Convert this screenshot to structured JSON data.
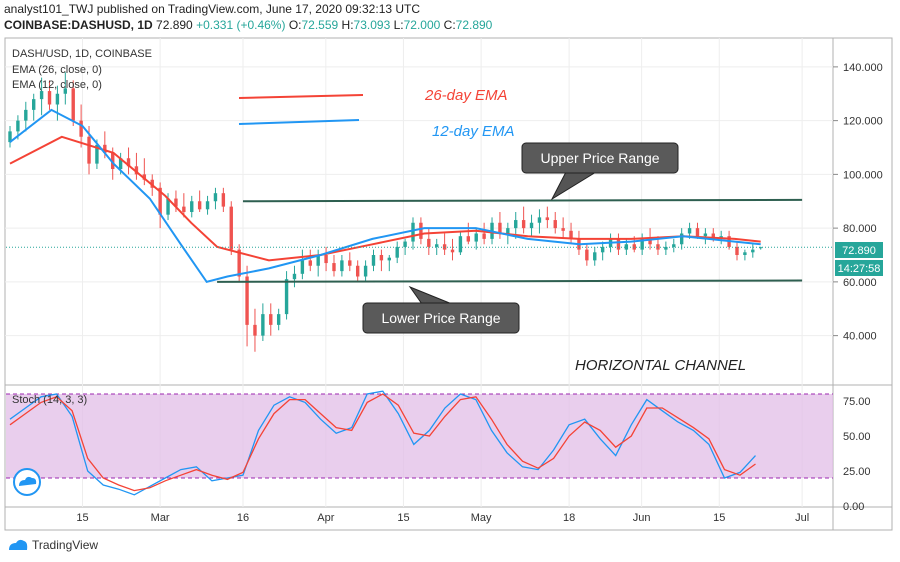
{
  "header": {
    "line1": "analyst101_TWJ published on TradingView.com, June 17, 2020 09:32:13 UTC",
    "line2_symbol": "COINBASE:DASHUSD, 1D",
    "line2_price": "72.890",
    "line2_change": "+0.331 (+0.46%)",
    "ohlc": {
      "o_label": "O:",
      "o": "72.559",
      "h_label": "H:",
      "h": "73.093",
      "l_label": "L:",
      "l": "72.000",
      "c_label": "C:",
      "c": "72.890"
    }
  },
  "legend": {
    "symbol": "DASH/USD, 1D, COINBASE",
    "ema1": "EMA (26, close, 0)",
    "ema2": "EMA (12, close, 0)"
  },
  "annotations": {
    "ema26": "26-day EMA",
    "ema12": "12-day EMA",
    "upper": "Upper Price Range",
    "lower": "Lower Price Range",
    "channel": "HORIZONTAL CHANNEL"
  },
  "price_label": "72.890",
  "countdown_label": "14:27:58",
  "stoch_label": "Stoch (14, 3, 3)",
  "footer": {
    "brand": "TradingView"
  },
  "colors": {
    "up": "#26a69a",
    "down": "#ef5350",
    "ema26": "#f44336",
    "ema12": "#2196f3",
    "channel": "#2e5f50",
    "stoch_k": "#2196f3",
    "stoch_d": "#f44336",
    "stoch_band": "#e1bee7"
  },
  "chart_data": [
    {
      "type": "candlestick",
      "title": "DASH/USD, 1D, COINBASE",
      "ylim": [
        22,
        150
      ],
      "y_ticks": [
        "140.000",
        "120.000",
        "100.000",
        "80.000",
        "60.000",
        "40.000"
      ],
      "y_tick_values": [
        140,
        120,
        100,
        80,
        60,
        40
      ],
      "x_ticks": [
        "15",
        "Mar",
        "16",
        "Apr",
        "15",
        "May",
        "18",
        "Jun",
        "15",
        "Jul"
      ],
      "x_tick_days": [
        14,
        29,
        45,
        61,
        76,
        91,
        108,
        122,
        137,
        153
      ],
      "grid": true,
      "candles": [
        [
          112,
          118,
          110,
          116
        ],
        [
          116,
          122,
          113,
          120
        ],
        [
          120,
          127,
          116,
          124
        ],
        [
          124,
          130,
          120,
          128
        ],
        [
          128,
          136,
          122,
          131
        ],
        [
          131,
          135,
          124,
          126
        ],
        [
          126,
          133,
          120,
          130
        ],
        [
          130,
          138,
          126,
          132
        ],
        [
          132,
          135,
          118,
          120
        ],
        [
          120,
          126,
          110,
          114
        ],
        [
          114,
          118,
          100,
          104
        ],
        [
          104,
          113,
          102,
          111
        ],
        [
          111,
          116,
          106,
          108
        ],
        [
          108,
          110,
          98,
          102
        ],
        [
          102,
          108,
          100,
          106
        ],
        [
          106,
          110,
          100,
          103
        ],
        [
          103,
          108,
          98,
          100
        ],
        [
          100,
          106,
          96,
          98
        ],
        [
          98,
          100,
          92,
          95
        ],
        [
          95,
          97,
          80,
          85
        ],
        [
          85,
          93,
          83,
          91
        ],
        [
          91,
          94,
          86,
          88
        ],
        [
          88,
          93,
          84,
          86
        ],
        [
          86,
          92,
          84,
          90
        ],
        [
          90,
          94,
          86,
          87
        ],
        [
          87,
          92,
          85,
          90
        ],
        [
          90,
          95,
          87,
          93
        ],
        [
          93,
          95,
          86,
          88
        ],
        [
          88,
          90,
          70,
          72
        ],
        [
          72,
          74,
          60,
          62
        ],
        [
          62,
          66,
          36,
          44
        ],
        [
          44,
          50,
          34,
          40
        ],
        [
          40,
          52,
          38,
          48
        ],
        [
          48,
          52,
          40,
          44
        ],
        [
          44,
          50,
          42,
          48
        ],
        [
          48,
          64,
          46,
          61
        ],
        [
          61,
          66,
          58,
          63
        ],
        [
          63,
          72,
          61,
          68
        ],
        [
          68,
          72,
          64,
          66
        ],
        [
          66,
          72,
          62,
          70
        ],
        [
          70,
          73,
          64,
          67
        ],
        [
          67,
          70,
          62,
          64
        ],
        [
          64,
          70,
          62,
          68
        ],
        [
          68,
          71,
          64,
          66
        ],
        [
          66,
          68,
          60,
          62
        ],
        [
          62,
          68,
          60,
          66
        ],
        [
          66,
          72,
          64,
          70
        ],
        [
          70,
          72,
          64,
          68
        ],
        [
          68,
          70,
          64,
          69
        ],
        [
          69,
          75,
          67,
          73
        ],
        [
          73,
          76,
          70,
          75
        ],
        [
          75,
          84,
          72,
          82
        ],
        [
          82,
          84,
          74,
          76
        ],
        [
          76,
          80,
          70,
          73
        ],
        [
          73,
          76,
          70,
          74
        ],
        [
          74,
          78,
          70,
          72
        ],
        [
          72,
          76,
          68,
          71
        ],
        [
          71,
          79,
          70,
          77
        ],
        [
          77,
          82,
          74,
          75
        ],
        [
          75,
          80,
          72,
          78
        ],
        [
          78,
          82,
          74,
          76
        ],
        [
          76,
          84,
          74,
          82
        ],
        [
          82,
          86,
          76,
          78
        ],
        [
          78,
          82,
          74,
          80
        ],
        [
          80,
          86,
          76,
          83
        ],
        [
          83,
          88,
          78,
          80
        ],
        [
          80,
          85,
          77,
          82
        ],
        [
          82,
          87,
          78,
          84
        ],
        [
          84,
          88,
          80,
          83
        ],
        [
          83,
          86,
          78,
          80
        ],
        [
          80,
          84,
          76,
          79
        ],
        [
          79,
          82,
          74,
          76
        ],
        [
          76,
          79,
          70,
          72
        ],
        [
          72,
          74,
          66,
          68
        ],
        [
          68,
          73,
          66,
          71
        ],
        [
          71,
          75,
          68,
          73
        ],
        [
          73,
          78,
          71,
          76
        ],
        [
          76,
          78,
          70,
          72
        ],
        [
          72,
          76,
          70,
          74
        ],
        [
          74,
          77,
          71,
          72
        ],
        [
          72,
          78,
          70,
          76
        ],
        [
          76,
          80,
          72,
          74
        ],
        [
          74,
          77,
          70,
          72
        ],
        [
          72,
          75,
          70,
          73
        ],
        [
          73,
          76,
          71,
          74
        ],
        [
          74,
          80,
          72,
          78
        ],
        [
          78,
          82,
          76,
          80
        ],
        [
          80,
          82,
          76,
          77
        ],
        [
          77,
          80,
          74,
          78
        ],
        [
          78,
          80,
          75,
          76
        ],
        [
          76,
          79,
          74,
          77
        ],
        [
          77,
          79,
          72,
          73
        ],
        [
          73,
          75,
          68,
          70
        ],
        [
          70,
          72,
          68,
          71
        ],
        [
          71,
          74,
          69,
          72
        ],
        [
          72.559,
          73.093,
          72,
          72.89
        ]
      ],
      "ema26": [
        [
          0,
          104
        ],
        [
          10,
          114
        ],
        [
          20,
          108
        ],
        [
          30,
          92
        ],
        [
          35,
          82
        ],
        [
          40,
          73
        ],
        [
          50,
          68
        ],
        [
          60,
          70
        ],
        [
          70,
          74
        ],
        [
          80,
          78
        ],
        [
          90,
          79
        ],
        [
          100,
          77
        ],
        [
          110,
          76
        ],
        [
          120,
          76
        ],
        [
          130,
          77
        ],
        [
          140,
          76
        ],
        [
          145,
          75
        ]
      ],
      "ema12": [
        [
          0,
          112
        ],
        [
          8,
          124
        ],
        [
          14,
          118
        ],
        [
          20,
          104
        ],
        [
          27,
          91
        ],
        [
          33,
          74
        ],
        [
          38,
          60
        ],
        [
          42,
          62
        ],
        [
          50,
          65
        ],
        [
          60,
          70
        ],
        [
          70,
          76
        ],
        [
          80,
          80
        ],
        [
          90,
          80
        ],
        [
          100,
          76
        ],
        [
          110,
          74
        ],
        [
          120,
          75
        ],
        [
          130,
          77
        ],
        [
          140,
          75
        ],
        [
          145,
          74
        ]
      ],
      "upper_range": [
        [
          45,
          90
        ],
        [
          153,
          90.5
        ]
      ],
      "lower_range": [
        [
          40,
          60
        ],
        [
          153,
          60.5
        ]
      ]
    },
    {
      "type": "line",
      "title": "Stoch (14, 3, 3)",
      "ylim": [
        0,
        85
      ],
      "y_ticks": [
        "75.00",
        "50.00",
        "25.00",
        "0.00"
      ],
      "y_tick_values": [
        75,
        50,
        25,
        0
      ],
      "bands": [
        20,
        80
      ],
      "series": [
        {
          "values": [
            [
              0,
              62
            ],
            [
              3,
              70
            ],
            [
              6,
              78
            ],
            [
              9,
              80
            ],
            [
              12,
              64
            ],
            [
              15,
              25
            ],
            [
              18,
              15
            ],
            [
              21,
              12
            ],
            [
              24,
              8
            ],
            [
              27,
              14
            ],
            [
              30,
              20
            ],
            [
              33,
              26
            ],
            [
              36,
              28
            ],
            [
              39,
              18
            ],
            [
              42,
              20
            ],
            [
              45,
              22
            ],
            [
              48,
              54
            ],
            [
              51,
              72
            ],
            [
              54,
              78
            ],
            [
              57,
              74
            ],
            [
              60,
              62
            ],
            [
              63,
              52
            ],
            [
              66,
              56
            ],
            [
              69,
              80
            ],
            [
              72,
              82
            ],
            [
              75,
              66
            ],
            [
              78,
              44
            ],
            [
              81,
              54
            ],
            [
              84,
              70
            ],
            [
              87,
              80
            ],
            [
              90,
              76
            ],
            [
              93,
              54
            ],
            [
              96,
              38
            ],
            [
              99,
              28
            ],
            [
              102,
              26
            ],
            [
              105,
              40
            ],
            [
              108,
              58
            ],
            [
              111,
              62
            ],
            [
              114,
              48
            ],
            [
              117,
              36
            ],
            [
              120,
              58
            ],
            [
              123,
              76
            ],
            [
              126,
              68
            ],
            [
              129,
              60
            ],
            [
              132,
              54
            ],
            [
              135,
              44
            ],
            [
              138,
              20
            ],
            [
              141,
              24
            ],
            [
              144,
              36
            ]
          ]
        },
        {
          "values": [
            [
              0,
              58
            ],
            [
              3,
              66
            ],
            [
              6,
              74
            ],
            [
              9,
              78
            ],
            [
              12,
              68
            ],
            [
              15,
              34
            ],
            [
              18,
              20
            ],
            [
              21,
              15
            ],
            [
              24,
              11
            ],
            [
              27,
              13
            ],
            [
              30,
              18
            ],
            [
              33,
              22
            ],
            [
              36,
              26
            ],
            [
              39,
              22
            ],
            [
              42,
              19
            ],
            [
              45,
              24
            ],
            [
              48,
              48
            ],
            [
              51,
              66
            ],
            [
              54,
              76
            ],
            [
              57,
              76
            ],
            [
              60,
              66
            ],
            [
              63,
              56
            ],
            [
              66,
              54
            ],
            [
              69,
              74
            ],
            [
              72,
              80
            ],
            [
              75,
              72
            ],
            [
              78,
              52
            ],
            [
              81,
              50
            ],
            [
              84,
              64
            ],
            [
              87,
              76
            ],
            [
              90,
              78
            ],
            [
              93,
              62
            ],
            [
              96,
              44
            ],
            [
              99,
              32
            ],
            [
              102,
              27
            ],
            [
              105,
              34
            ],
            [
              108,
              50
            ],
            [
              111,
              60
            ],
            [
              114,
              54
            ],
            [
              117,
              42
            ],
            [
              120,
              50
            ],
            [
              123,
              70
            ],
            [
              126,
              70
            ],
            [
              129,
              63
            ],
            [
              132,
              56
            ],
            [
              135,
              48
            ],
            [
              138,
              26
            ],
            [
              141,
              22
            ],
            [
              144,
              30
            ]
          ]
        }
      ]
    }
  ]
}
